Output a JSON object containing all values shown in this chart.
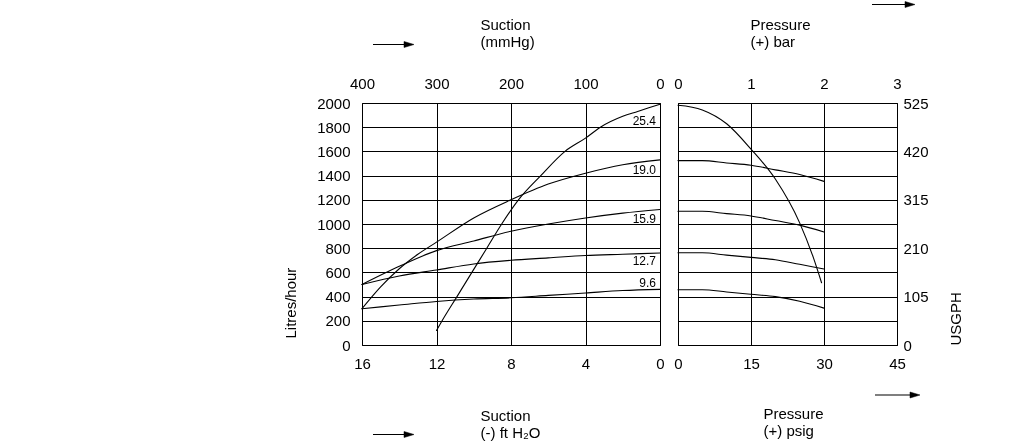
{
  "chart_data": [
    {
      "type": "line",
      "xlabel": "Suction\n(-) ft H₂O",
      "x2label": "Suction\n(mmHg)",
      "ylabel": "Litres/hour",
      "xlim": [
        16,
        0
      ],
      "xticks": [
        16,
        12,
        8,
        4,
        0
      ],
      "x2lim": [
        400,
        0
      ],
      "x2ticks": [
        400,
        300,
        200,
        100,
        0
      ],
      "ylim": [
        0,
        2000
      ],
      "yticks": [
        0,
        200,
        400,
        600,
        800,
        1000,
        1200,
        1400,
        1600,
        1800,
        2000
      ],
      "grid": true,
      "series": [
        {
          "name": "25.4",
          "color": "#000000",
          "x": [
            12,
            11.7,
            10.9,
            10.1,
            9.3,
            8.5,
            7.6,
            6.4,
            5.1,
            4,
            3.2,
            2,
            1.2,
            0
          ],
          "values": [
            120,
            200,
            400,
            600,
            800,
            1000,
            1200,
            1400,
            1600,
            1710,
            1800,
            1890,
            1930,
            1990
          ]
        },
        {
          "name": "19.0",
          "color": "#000000",
          "x": [
            16,
            15,
            14,
            13,
            12,
            10,
            8,
            6,
            4,
            2,
            0
          ],
          "values": [
            300,
            480,
            630,
            750,
            850,
            1050,
            1200,
            1330,
            1420,
            1490,
            1530
          ]
        },
        {
          "name": "15.9",
          "color": "#000000",
          "x": [
            16,
            14,
            12,
            10,
            8,
            6,
            4,
            2,
            0
          ],
          "values": [
            500,
            650,
            780,
            860,
            940,
            1000,
            1050,
            1090,
            1120
          ]
        },
        {
          "name": "12.7",
          "color": "#000000",
          "x": [
            16,
            14,
            12,
            10,
            8,
            6,
            4,
            2,
            0
          ],
          "values": [
            500,
            570,
            620,
            670,
            700,
            720,
            740,
            750,
            760
          ]
        },
        {
          "name": "9.6",
          "color": "#000000",
          "x": [
            16,
            14,
            12,
            10,
            8,
            6,
            4,
            2,
            0
          ],
          "values": [
            300,
            330,
            360,
            380,
            390,
            410,
            430,
            450,
            460
          ]
        }
      ]
    },
    {
      "type": "line",
      "xlabel": "Pressure\n(+) psig",
      "x2label": "Pressure\n(+) bar",
      "y2label": "USGPH",
      "xlim": [
        0,
        45
      ],
      "xticks": [
        0,
        15,
        30,
        45
      ],
      "x2lim": [
        0,
        3
      ],
      "x2ticks": [
        0,
        1,
        2,
        3
      ],
      "y2lim": [
        0,
        525
      ],
      "y2ticks": [
        0,
        {
          "value": 52.5,
          "label": null
        },
        105,
        {
          "value": 157.5,
          "label": null
        },
        210,
        {
          "value": 262.5,
          "label": null
        },
        315,
        {
          "value": 367.5,
          "label": null
        },
        420,
        {
          "value": 472.5,
          "label": null
        },
        525
      ],
      "grid": true,
      "series": [
        {
          "color": "#000000",
          "axis": "y2",
          "x": [
            0,
            5,
            10,
            15,
            20,
            25,
            27.8,
            29.5
          ],
          "values": [
            520,
            510,
            480,
            425,
            360,
            265,
            190,
            135
          ]
        },
        {
          "color": "#000000",
          "axis": "y2",
          "x": [
            0,
            5,
            10,
            15,
            20,
            25,
            30
          ],
          "values": [
            400,
            400,
            395,
            390,
            380,
            370,
            355
          ]
        },
        {
          "color": "#000000",
          "axis": "y2",
          "x": [
            0,
            5,
            10,
            15,
            20,
            25,
            30
          ],
          "values": [
            290,
            290,
            285,
            280,
            270,
            260,
            245
          ]
        },
        {
          "color": "#000000",
          "axis": "y2",
          "x": [
            0,
            5,
            10,
            15,
            20,
            25,
            30
          ],
          "values": [
            200,
            200,
            195,
            190,
            185,
            175,
            165
          ]
        },
        {
          "color": "#000000",
          "axis": "y2",
          "x": [
            0,
            5,
            10,
            15,
            20,
            25,
            30
          ],
          "values": [
            120,
            120,
            115,
            110,
            105,
            95,
            80
          ]
        }
      ]
    }
  ]
}
